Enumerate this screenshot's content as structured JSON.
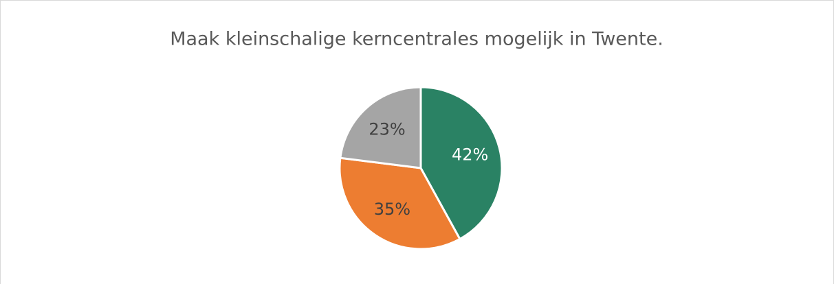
{
  "chart_data": {
    "type": "pie",
    "title": "Maak kleinschalige kerncentrales mogelijk in Twente.",
    "values": [
      42,
      35,
      23
    ],
    "value_labels": [
      "42%",
      "35%",
      "23%"
    ],
    "colors": [
      "#2a8264",
      "#ed7d31",
      "#a5a5a5"
    ],
    "label_colors": [
      "#ffffff",
      "#404040",
      "#404040"
    ]
  }
}
